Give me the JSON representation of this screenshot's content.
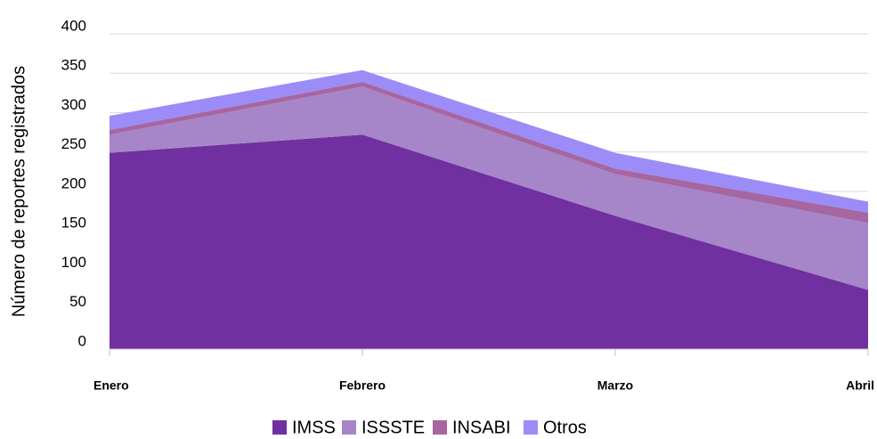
{
  "chart_data": {
    "type": "stacked_area",
    "y_label": "Número de reportes registrados",
    "categories": [
      "Enero",
      "Febrero",
      "Marzo",
      "Abril"
    ],
    "series": [
      {
        "name": "IMSS",
        "color": "#7030a0",
        "values": [
          249,
          272,
          169,
          75
        ]
      },
      {
        "name": "ISSSTE",
        "color": "#a685c8",
        "values": [
          23,
          61,
          53,
          85
        ]
      },
      {
        "name": "INSABI",
        "color": "#a666a0",
        "values": [
          6,
          6,
          7,
          13
        ]
      },
      {
        "name": "Otros",
        "color": "#9b8cf8",
        "values": [
          18,
          15,
          20,
          14
        ]
      }
    ],
    "ylim": [
      0,
      400
    ],
    "yticks": [
      0,
      50,
      100,
      150,
      200,
      250,
      300,
      350,
      400
    ],
    "grid": true,
    "legend": "bottom"
  }
}
